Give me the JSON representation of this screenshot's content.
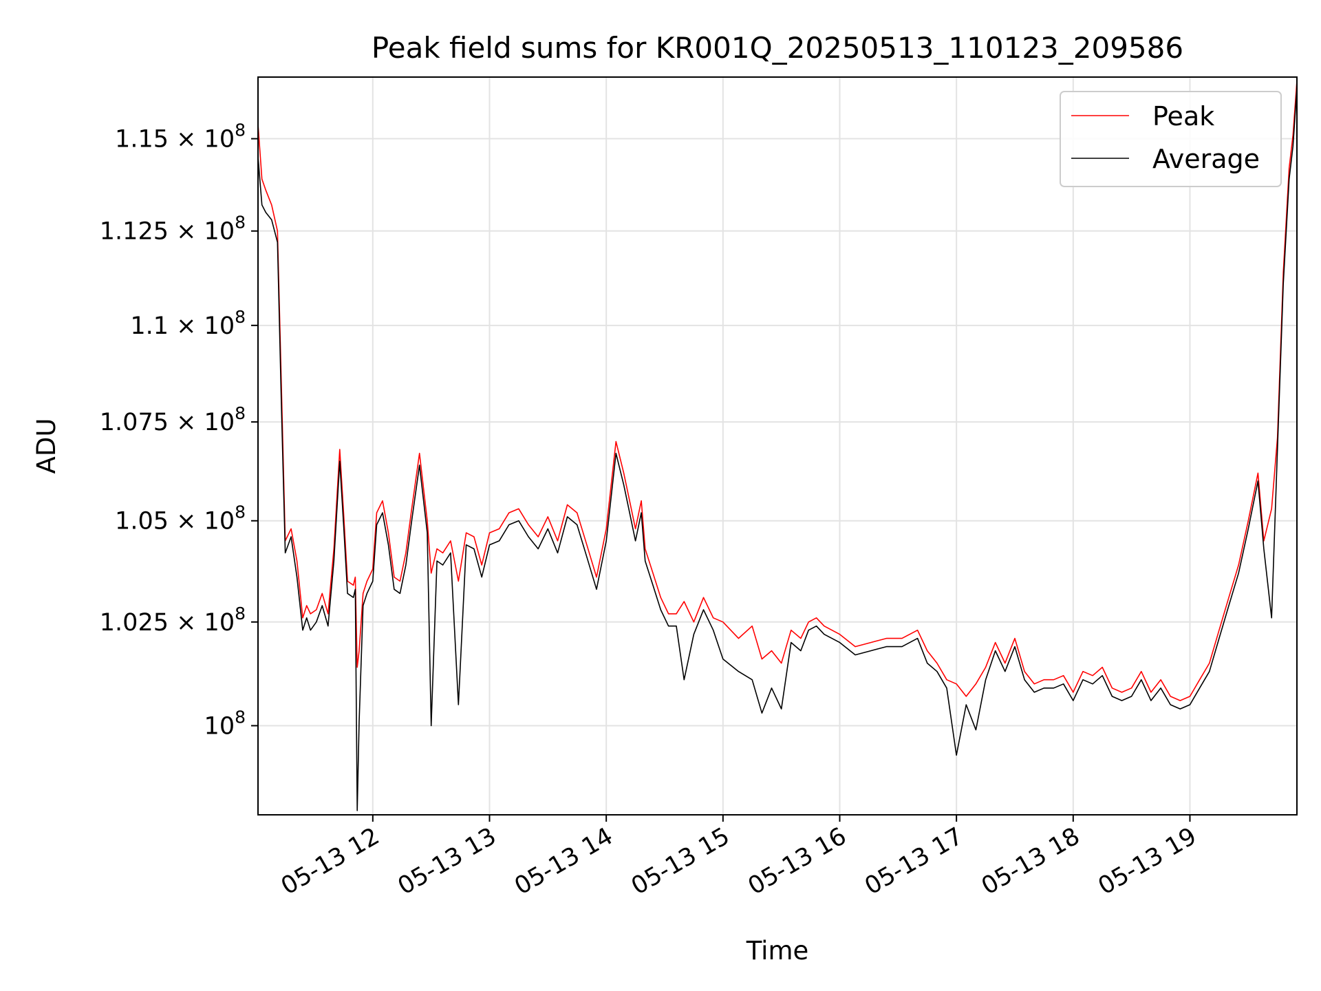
{
  "chart_data": {
    "type": "line",
    "title": "Peak field sums for KR001Q_20250513_110123_209586",
    "xlabel": "Time",
    "ylabel": "ADU",
    "y_scale": "log",
    "grid": true,
    "legend_position": "top-right",
    "xlim": [
      "2025-05-13 11:01",
      "2025-05-13 19:55"
    ],
    "ylim": [
      97900000,
      116700000
    ],
    "x_ticks": [
      {
        "value": "2025-05-13 12:00",
        "label": "05-13 12"
      },
      {
        "value": "2025-05-13 13:00",
        "label": "05-13 13"
      },
      {
        "value": "2025-05-13 14:00",
        "label": "05-13 14"
      },
      {
        "value": "2025-05-13 15:00",
        "label": "05-13 15"
      },
      {
        "value": "2025-05-13 16:00",
        "label": "05-13 16"
      },
      {
        "value": "2025-05-13 17:00",
        "label": "05-13 17"
      },
      {
        "value": "2025-05-13 18:00",
        "label": "05-13 18"
      },
      {
        "value": "2025-05-13 19:00",
        "label": "05-13 19"
      }
    ],
    "y_ticks": [
      {
        "value": 100000000,
        "mant": "",
        "exp": "8"
      },
      {
        "value": 102500000,
        "mant": "1.025",
        "exp": "8"
      },
      {
        "value": 105000000,
        "mant": "1.05",
        "exp": "8"
      },
      {
        "value": 107500000,
        "mant": "1.075",
        "exp": "8"
      },
      {
        "value": 110000000,
        "mant": "1.1",
        "exp": "8"
      },
      {
        "value": 112500000,
        "mant": "1.125",
        "exp": "8"
      },
      {
        "value": 115000000,
        "mant": "1.15",
        "exp": "8"
      }
    ],
    "series": [
      {
        "name": "Peak",
        "color": "#ff0000",
        "x": [
          "2025-05-13 11:01",
          "2025-05-13 11:03",
          "2025-05-13 11:05",
          "2025-05-13 11:08",
          "2025-05-13 11:11",
          "2025-05-13 11:13",
          "2025-05-13 11:15",
          "2025-05-13 11:18",
          "2025-05-13 11:21",
          "2025-05-13 11:24",
          "2025-05-13 11:26",
          "2025-05-13 11:28",
          "2025-05-13 11:31",
          "2025-05-13 11:34",
          "2025-05-13 11:37",
          "2025-05-13 11:40",
          "2025-05-13 11:43",
          "2025-05-13 11:45",
          "2025-05-13 11:47",
          "2025-05-13 11:50",
          "2025-05-13 11:51",
          "2025-05-13 11:52",
          "2025-05-13 11:53",
          "2025-05-13 11:55",
          "2025-05-13 11:57",
          "2025-05-13 12:00",
          "2025-05-13 12:02",
          "2025-05-13 12:05",
          "2025-05-13 12:08",
          "2025-05-13 12:11",
          "2025-05-13 12:14",
          "2025-05-13 12:17",
          "2025-05-13 12:20",
          "2025-05-13 12:24",
          "2025-05-13 12:28",
          "2025-05-13 12:30",
          "2025-05-13 12:33",
          "2025-05-13 12:36",
          "2025-05-13 12:40",
          "2025-05-13 12:44",
          "2025-05-13 12:48",
          "2025-05-13 12:52",
          "2025-05-13 12:56",
          "2025-05-13 13:00",
          "2025-05-13 13:05",
          "2025-05-13 13:10",
          "2025-05-13 13:15",
          "2025-05-13 13:20",
          "2025-05-13 13:25",
          "2025-05-13 13:30",
          "2025-05-13 13:35",
          "2025-05-13 13:40",
          "2025-05-13 13:45",
          "2025-05-13 13:50",
          "2025-05-13 13:55",
          "2025-05-13 14:00",
          "2025-05-13 14:05",
          "2025-05-13 14:09",
          "2025-05-13 14:12",
          "2025-05-13 14:15",
          "2025-05-13 14:18",
          "2025-05-13 14:20",
          "2025-05-13 14:24",
          "2025-05-13 14:28",
          "2025-05-13 14:32",
          "2025-05-13 14:36",
          "2025-05-13 14:40",
          "2025-05-13 14:45",
          "2025-05-13 14:50",
          "2025-05-13 14:55",
          "2025-05-13 15:00",
          "2025-05-13 15:08",
          "2025-05-13 15:15",
          "2025-05-13 15:20",
          "2025-05-13 15:25",
          "2025-05-13 15:30",
          "2025-05-13 15:35",
          "2025-05-13 15:40",
          "2025-05-13 15:44",
          "2025-05-13 15:48",
          "2025-05-13 15:52",
          "2025-05-13 16:00",
          "2025-05-13 16:08",
          "2025-05-13 16:16",
          "2025-05-13 16:24",
          "2025-05-13 16:32",
          "2025-05-13 16:40",
          "2025-05-13 16:45",
          "2025-05-13 16:50",
          "2025-05-13 16:55",
          "2025-05-13 17:00",
          "2025-05-13 17:05",
          "2025-05-13 17:10",
          "2025-05-13 17:15",
          "2025-05-13 17:20",
          "2025-05-13 17:25",
          "2025-05-13 17:30",
          "2025-05-13 17:35",
          "2025-05-13 17:40",
          "2025-05-13 17:45",
          "2025-05-13 17:50",
          "2025-05-13 17:55",
          "2025-05-13 18:00",
          "2025-05-13 18:05",
          "2025-05-13 18:10",
          "2025-05-13 18:15",
          "2025-05-13 18:20",
          "2025-05-13 18:25",
          "2025-05-13 18:30",
          "2025-05-13 18:35",
          "2025-05-13 18:40",
          "2025-05-13 18:45",
          "2025-05-13 18:50",
          "2025-05-13 18:55",
          "2025-05-13 19:00",
          "2025-05-13 19:05",
          "2025-05-13 19:10",
          "2025-05-13 19:15",
          "2025-05-13 19:20",
          "2025-05-13 19:25",
          "2025-05-13 19:30",
          "2025-05-13 19:35",
          "2025-05-13 19:38",
          "2025-05-13 19:42",
          "2025-05-13 19:45",
          "2025-05-13 19:48",
          "2025-05-13 19:51",
          "2025-05-13 19:53",
          "2025-05-13 19:55"
        ],
        "y": [
          115400000,
          113900000,
          113600000,
          113200000,
          112500000,
          108500000,
          104500000,
          104800000,
          104000000,
          102600000,
          102900000,
          102700000,
          102800000,
          103200000,
          102700000,
          104300000,
          106800000,
          105200000,
          103500000,
          103400000,
          103600000,
          101400000,
          101800000,
          103200000,
          103500000,
          103800000,
          105200000,
          105500000,
          104700000,
          103600000,
          103500000,
          104200000,
          105300000,
          106700000,
          105000000,
          103700000,
          104300000,
          104200000,
          104500000,
          103500000,
          104700000,
          104600000,
          103900000,
          104700000,
          104800000,
          105200000,
          105300000,
          104900000,
          104600000,
          105100000,
          104500000,
          105400000,
          105200000,
          104400000,
          103600000,
          104800000,
          107000000,
          106200000,
          105500000,
          104800000,
          105500000,
          104300000,
          103700000,
          103100000,
          102700000,
          102700000,
          103000000,
          102500000,
          103100000,
          102600000,
          102500000,
          102100000,
          102400000,
          101600000,
          101800000,
          101500000,
          102300000,
          102100000,
          102500000,
          102600000,
          102400000,
          102200000,
          101900000,
          102000000,
          102100000,
          102100000,
          102300000,
          101800000,
          101500000,
          101100000,
          101000000,
          100700000,
          101000000,
          101400000,
          102000000,
          101500000,
          102100000,
          101300000,
          101000000,
          101100000,
          101100000,
          101200000,
          100800000,
          101300000,
          101200000,
          101400000,
          100900000,
          100800000,
          100900000,
          101300000,
          100800000,
          101100000,
          100700000,
          100600000,
          100700000,
          101100000,
          101500000,
          102300000,
          103100000,
          103900000,
          105000000,
          106200000,
          104500000,
          105300000,
          107100000,
          111400000,
          114200000,
          115100000,
          116600000
        ]
      },
      {
        "name": "Average",
        "color": "#000000",
        "x": [
          "2025-05-13 11:01",
          "2025-05-13 11:03",
          "2025-05-13 11:05",
          "2025-05-13 11:08",
          "2025-05-13 11:11",
          "2025-05-13 11:13",
          "2025-05-13 11:15",
          "2025-05-13 11:18",
          "2025-05-13 11:21",
          "2025-05-13 11:24",
          "2025-05-13 11:26",
          "2025-05-13 11:28",
          "2025-05-13 11:31",
          "2025-05-13 11:34",
          "2025-05-13 11:37",
          "2025-05-13 11:40",
          "2025-05-13 11:43",
          "2025-05-13 11:45",
          "2025-05-13 11:47",
          "2025-05-13 11:50",
          "2025-05-13 11:51",
          "2025-05-13 11:52",
          "2025-05-13 11:53",
          "2025-05-13 11:55",
          "2025-05-13 11:57",
          "2025-05-13 12:00",
          "2025-05-13 12:02",
          "2025-05-13 12:05",
          "2025-05-13 12:08",
          "2025-05-13 12:11",
          "2025-05-13 12:14",
          "2025-05-13 12:17",
          "2025-05-13 12:20",
          "2025-05-13 12:24",
          "2025-05-13 12:28",
          "2025-05-13 12:30",
          "2025-05-13 12:33",
          "2025-05-13 12:36",
          "2025-05-13 12:40",
          "2025-05-13 12:44",
          "2025-05-13 12:48",
          "2025-05-13 12:52",
          "2025-05-13 12:56",
          "2025-05-13 13:00",
          "2025-05-13 13:05",
          "2025-05-13 13:10",
          "2025-05-13 13:15",
          "2025-05-13 13:20",
          "2025-05-13 13:25",
          "2025-05-13 13:30",
          "2025-05-13 13:35",
          "2025-05-13 13:40",
          "2025-05-13 13:45",
          "2025-05-13 13:50",
          "2025-05-13 13:55",
          "2025-05-13 14:00",
          "2025-05-13 14:05",
          "2025-05-13 14:09",
          "2025-05-13 14:12",
          "2025-05-13 14:15",
          "2025-05-13 14:18",
          "2025-05-13 14:20",
          "2025-05-13 14:24",
          "2025-05-13 14:28",
          "2025-05-13 14:32",
          "2025-05-13 14:36",
          "2025-05-13 14:40",
          "2025-05-13 14:45",
          "2025-05-13 14:50",
          "2025-05-13 14:55",
          "2025-05-13 15:00",
          "2025-05-13 15:08",
          "2025-05-13 15:15",
          "2025-05-13 15:20",
          "2025-05-13 15:25",
          "2025-05-13 15:30",
          "2025-05-13 15:35",
          "2025-05-13 15:40",
          "2025-05-13 15:44",
          "2025-05-13 15:48",
          "2025-05-13 15:52",
          "2025-05-13 16:00",
          "2025-05-13 16:08",
          "2025-05-13 16:16",
          "2025-05-13 16:24",
          "2025-05-13 16:32",
          "2025-05-13 16:40",
          "2025-05-13 16:45",
          "2025-05-13 16:50",
          "2025-05-13 16:55",
          "2025-05-13 17:00",
          "2025-05-13 17:05",
          "2025-05-13 17:10",
          "2025-05-13 17:15",
          "2025-05-13 17:20",
          "2025-05-13 17:25",
          "2025-05-13 17:30",
          "2025-05-13 17:35",
          "2025-05-13 17:40",
          "2025-05-13 17:45",
          "2025-05-13 17:50",
          "2025-05-13 17:55",
          "2025-05-13 18:00",
          "2025-05-13 18:05",
          "2025-05-13 18:10",
          "2025-05-13 18:15",
          "2025-05-13 18:20",
          "2025-05-13 18:25",
          "2025-05-13 18:30",
          "2025-05-13 18:35",
          "2025-05-13 18:40",
          "2025-05-13 18:45",
          "2025-05-13 18:50",
          "2025-05-13 18:55",
          "2025-05-13 19:00",
          "2025-05-13 19:05",
          "2025-05-13 19:10",
          "2025-05-13 19:15",
          "2025-05-13 19:20",
          "2025-05-13 19:25",
          "2025-05-13 19:30",
          "2025-05-13 19:35",
          "2025-05-13 19:38",
          "2025-05-13 19:42",
          "2025-05-13 19:45",
          "2025-05-13 19:48",
          "2025-05-13 19:51",
          "2025-05-13 19:53",
          "2025-05-13 19:55"
        ],
        "y": [
          114500000,
          113200000,
          113000000,
          112800000,
          112200000,
          108000000,
          104200000,
          104600000,
          103600000,
          102300000,
          102600000,
          102300000,
          102500000,
          102900000,
          102400000,
          104000000,
          106500000,
          104900000,
          103200000,
          103100000,
          103300000,
          98000000,
          100100000,
          102900000,
          103200000,
          103500000,
          104900000,
          105200000,
          104400000,
          103300000,
          103200000,
          103900000,
          105000000,
          106400000,
          104700000,
          100000000,
          104000000,
          103900000,
          104200000,
          100500000,
          104400000,
          104300000,
          103600000,
          104400000,
          104500000,
          104900000,
          105000000,
          104600000,
          104300000,
          104800000,
          104200000,
          105100000,
          104900000,
          104100000,
          103300000,
          104500000,
          106700000,
          105900000,
          105200000,
          104500000,
          105200000,
          104000000,
          103400000,
          102800000,
          102400000,
          102400000,
          101100000,
          102200000,
          102800000,
          102300000,
          101600000,
          101300000,
          101100000,
          100300000,
          100900000,
          100400000,
          102000000,
          101800000,
          102300000,
          102400000,
          102200000,
          102000000,
          101700000,
          101800000,
          101900000,
          101900000,
          102100000,
          101500000,
          101300000,
          100900000,
          99300000,
          100500000,
          99900000,
          101100000,
          101800000,
          101300000,
          101900000,
          101100000,
          100800000,
          100900000,
          100900000,
          101000000,
          100600000,
          101100000,
          101000000,
          101200000,
          100700000,
          100600000,
          100700000,
          101100000,
          100600000,
          100900000,
          100500000,
          100400000,
          100500000,
          100900000,
          101300000,
          102100000,
          102900000,
          103700000,
          104800000,
          106000000,
          104300000,
          102600000,
          106800000,
          111100000,
          113900000,
          114800000,
          116400000
        ]
      }
    ]
  }
}
